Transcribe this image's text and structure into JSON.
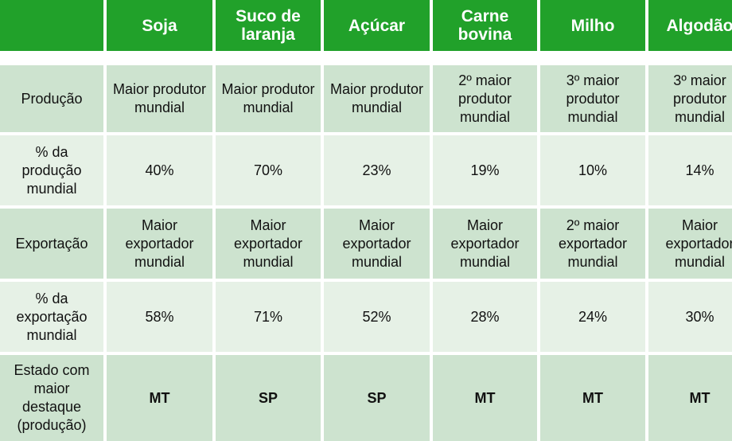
{
  "columns": [
    "Soja",
    "Suco de laranja",
    "Açúcar",
    "Carne bovina",
    "Milho",
    "Algodão"
  ],
  "rows": [
    {
      "label": "Produção",
      "values": [
        "Maior produtor mundial",
        "Maior produtor mundial",
        "Maior produtor mundial",
        "2º maior produtor mundial",
        "3º maior produtor mundial",
        "3º maior produtor mundial"
      ]
    },
    {
      "label": "% da produção mundial",
      "values": [
        "40%",
        "70%",
        "23%",
        "19%",
        "10%",
        "14%"
      ]
    },
    {
      "label": "Exportação",
      "values": [
        "Maior exportador mundial",
        "Maior exportador mundial",
        "Maior exportador mundial",
        "Maior exportador mundial",
        "2º maior exportador mundial",
        "Maior exportador mundial"
      ]
    },
    {
      "label": "% da exportação mundial",
      "values": [
        "58%",
        "71%",
        "52%",
        "28%",
        "24%",
        "30%"
      ]
    },
    {
      "label": "Estado com maior destaque (produção)",
      "values": [
        "MT",
        "SP",
        "SP",
        "MT",
        "MT",
        "MT"
      ]
    }
  ],
  "colors": {
    "header_green": "#21a12a",
    "row_dark": "#cde3cf",
    "row_light": "#e6f1e6"
  }
}
